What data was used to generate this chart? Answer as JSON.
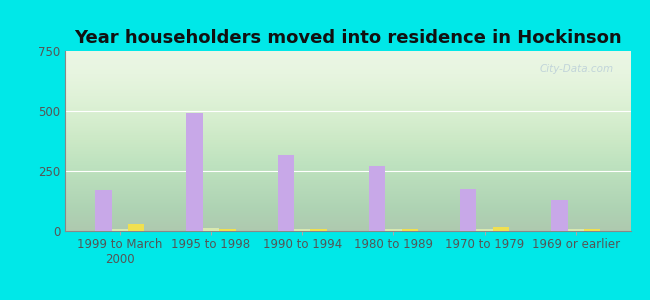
{
  "title": "Year householders moved into residence in Hockinson",
  "categories": [
    "1999 to March\n2000",
    "1995 to 1998",
    "1990 to 1994",
    "1980 to 1989",
    "1970 to 1979",
    "1969 or earlier"
  ],
  "series": {
    "White Non-Hispanic": [
      170,
      490,
      315,
      270,
      175,
      130
    ],
    "Two or More Races": [
      10,
      12,
      8,
      7,
      8,
      10
    ],
    "Hispanic or Latino": [
      28,
      10,
      8,
      7,
      18,
      10
    ]
  },
  "colors": {
    "White Non-Hispanic": "#c8a8e8",
    "Two or More Races": "#d8e8b0",
    "Hispanic or Latino": "#f0e050"
  },
  "ylim": [
    0,
    750
  ],
  "yticks": [
    0,
    250,
    500,
    750
  ],
  "outer_bg": "#00e8e8",
  "plot_bg_top": "#f0faf8",
  "plot_bg_bottom": "#d8f0d8",
  "bar_width": 0.18,
  "title_fontsize": 13,
  "tick_fontsize": 8.5,
  "legend_fontsize": 9,
  "watermark": "City-Data.com"
}
